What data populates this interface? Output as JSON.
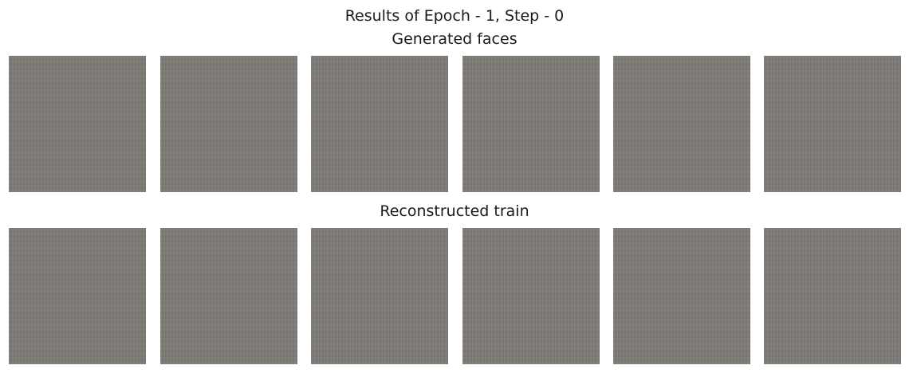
{
  "figure": {
    "title": "Results of Epoch - 1, Step - 0",
    "panels": [
      {
        "title": "Generated faces",
        "image_count": 6,
        "tile_color": "#7d7a76"
      },
      {
        "title": "Reconstructed train",
        "image_count": 6,
        "tile_color": "#7d7a76"
      }
    ]
  }
}
